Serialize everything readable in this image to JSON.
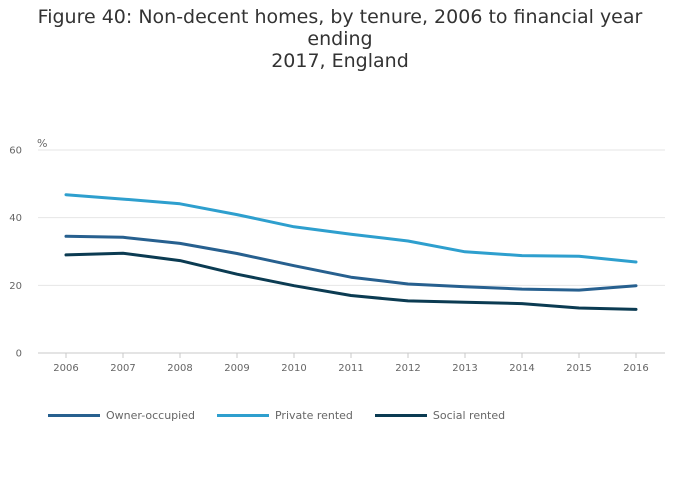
{
  "chart_data": {
    "type": "line",
    "title_lines": [
      "Figure 40: Non-decent homes, by tenure, 2006 to financial year ending",
      "2017, England"
    ],
    "ylabel": "%",
    "ylim": [
      0,
      60
    ],
    "y_ticks": [
      "0",
      "20",
      "40",
      "60"
    ],
    "y_tick_values": [
      0,
      20,
      40,
      60
    ],
    "categories": [
      "2006",
      "2007",
      "2008",
      "2009",
      "2010",
      "2011",
      "2012",
      "2013",
      "2014",
      "2015",
      "2016"
    ],
    "grid": true,
    "legend_position": "bottom-left",
    "series": [
      {
        "name": "Owner-occupied",
        "color": "#27608f",
        "values": [
          34.5,
          34.2,
          32.4,
          29.4,
          25.8,
          22.4,
          20.4,
          19.6,
          18.9,
          18.6,
          19.9
        ]
      },
      {
        "name": "Private rented",
        "color": "#2e9fce",
        "values": [
          46.8,
          45.5,
          44.1,
          40.9,
          37.3,
          35.1,
          33.1,
          29.9,
          28.8,
          28.6,
          26.9
        ]
      },
      {
        "name": "Social rented",
        "color": "#0b3b52",
        "values": [
          29.0,
          29.5,
          27.3,
          23.3,
          19.9,
          17.0,
          15.4,
          15.0,
          14.6,
          13.3,
          12.9
        ]
      }
    ]
  }
}
